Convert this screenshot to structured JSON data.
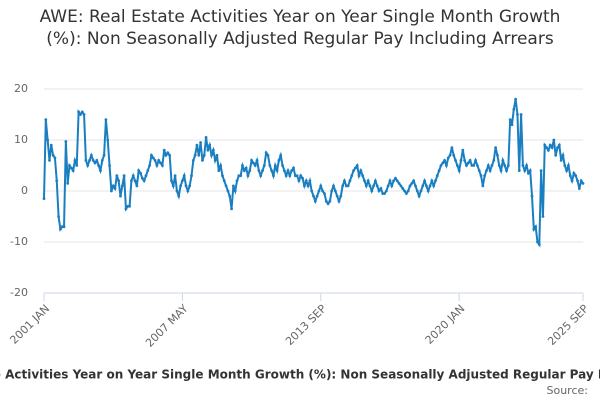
{
  "chart_data": {
    "type": "line",
    "title": "AWE: Real Estate Activities Year on Year Single Month Growth (%): Non Seasonally Adjusted Regular Pay Including Arrears",
    "source": "Source:",
    "categories": [
      "2001 JAN",
      "2001 FEB",
      "2001 MAR",
      "2001 APR",
      "2001 MAY",
      "2001 JUN",
      "2001 JUL",
      "2001 AUG",
      "2001 SEP",
      "2001 OCT",
      "2001 NOV",
      "2001 DEC",
      "2002 JAN",
      "2002 FEB",
      "2002 MAR",
      "2002 APR",
      "2002 MAY",
      "2002 JUN",
      "2002 JUL",
      "2002 AUG",
      "2002 SEP",
      "2002 OCT",
      "2002 NOV",
      "2002 DEC",
      "2003 JAN",
      "2003 FEB",
      "2003 MAR",
      "2003 APR",
      "2003 MAY",
      "2003 JUN",
      "2003 JUL",
      "2003 AUG",
      "2003 SEP",
      "2003 OCT",
      "2003 NOV",
      "2003 DEC",
      "2004 JAN",
      "2004 FEB",
      "2004 MAR",
      "2004 APR",
      "2004 MAY",
      "2004 JUN",
      "2004 JUL",
      "2004 AUG",
      "2004 SEP",
      "2004 OCT",
      "2004 NOV",
      "2004 DEC",
      "2005 JAN",
      "2005 FEB",
      "2005 MAR",
      "2005 APR",
      "2005 MAY",
      "2005 JUN",
      "2005 JUL",
      "2005 AUG",
      "2005 SEP",
      "2005 OCT",
      "2005 NOV",
      "2005 DEC",
      "2006 JAN",
      "2006 FEB",
      "2006 MAR",
      "2006 APR",
      "2006 MAY",
      "2006 JUN",
      "2006 JUL",
      "2006 AUG",
      "2006 SEP",
      "2006 OCT",
      "2006 NOV",
      "2006 DEC",
      "2007 JAN",
      "2007 FEB",
      "2007 MAR",
      "2007 APR",
      "2007 MAY",
      "2007 JUN",
      "2007 JUL",
      "2007 AUG",
      "2007 SEP",
      "2007 OCT",
      "2007 NOV",
      "2007 DEC",
      "2008 JAN",
      "2008 FEB",
      "2008 MAR",
      "2008 APR",
      "2008 MAY",
      "2008 JUN",
      "2008 JUL",
      "2008 AUG",
      "2008 SEP",
      "2008 OCT",
      "2008 NOV",
      "2008 DEC",
      "2009 JAN",
      "2009 FEB",
      "2009 MAR",
      "2009 APR",
      "2009 MAY",
      "2009 JUN",
      "2009 JUL",
      "2009 AUG",
      "2009 SEP",
      "2009 OCT",
      "2009 NOV",
      "2009 DEC",
      "2010 JAN",
      "2010 FEB",
      "2010 MAR",
      "2010 APR",
      "2010 MAY",
      "2010 JUN",
      "2010 JUL",
      "2010 AUG",
      "2010 SEP",
      "2010 OCT",
      "2010 NOV",
      "2010 DEC",
      "2011 JAN",
      "2011 FEB",
      "2011 MAR",
      "2011 APR",
      "2011 MAY",
      "2011 JUN",
      "2011 JUL",
      "2011 AUG",
      "2011 SEP",
      "2011 OCT",
      "2011 NOV",
      "2011 DEC",
      "2012 JAN",
      "2012 FEB",
      "2012 MAR",
      "2012 APR",
      "2012 MAY",
      "2012 JUN",
      "2012 JUL",
      "2012 AUG",
      "2012 SEP",
      "2012 OCT",
      "2012 NOV",
      "2012 DEC",
      "2013 JAN",
      "2013 FEB",
      "2013 MAR",
      "2013 APR",
      "2013 MAY",
      "2013 JUN",
      "2013 JUL",
      "2013 AUG",
      "2013 SEP",
      "2013 OCT",
      "2013 NOV",
      "2013 DEC",
      "2014 JAN",
      "2014 FEB",
      "2014 MAR",
      "2014 APR",
      "2014 MAY",
      "2014 JUN",
      "2014 JUL",
      "2014 AUG",
      "2014 SEP",
      "2014 OCT",
      "2014 NOV",
      "2014 DEC",
      "2015 JAN",
      "2015 FEB",
      "2015 MAR",
      "2015 APR",
      "2015 MAY",
      "2015 JUN",
      "2015 JUL",
      "2015 AUG",
      "2015 SEP",
      "2015 OCT",
      "2015 NOV",
      "2015 DEC",
      "2016 JAN",
      "2016 FEB",
      "2016 MAR",
      "2016 APR",
      "2016 MAY",
      "2016 JUN",
      "2016 JUL",
      "2016 AUG",
      "2016 SEP",
      "2016 OCT",
      "2016 NOV",
      "2016 DEC",
      "2017 JAN",
      "2017 FEB",
      "2017 MAR",
      "2017 APR",
      "2017 MAY",
      "2017 JUN",
      "2017 JUL",
      "2017 AUG",
      "2017 SEP",
      "2017 OCT",
      "2017 NOV",
      "2017 DEC",
      "2018 JAN",
      "2018 FEB",
      "2018 MAR",
      "2018 APR",
      "2018 MAY",
      "2018 JUN",
      "2018 JUL",
      "2018 AUG",
      "2018 SEP",
      "2018 OCT",
      "2018 NOV",
      "2018 DEC",
      "2019 JAN",
      "2019 FEB",
      "2019 MAR",
      "2019 APR",
      "2019 MAY",
      "2019 JUN",
      "2019 JUL",
      "2019 AUG",
      "2019 SEP",
      "2019 OCT",
      "2019 NOV",
      "2019 DEC",
      "2020 JAN",
      "2020 FEB",
      "2020 MAR",
      "2020 APR",
      "2020 MAY",
      "2020 JUN",
      "2020 JUL",
      "2020 AUG",
      "2020 SEP",
      "2020 OCT",
      "2020 NOV",
      "2020 DEC",
      "2021 JAN",
      "2021 FEB",
      "2021 MAR",
      "2021 APR",
      "2021 MAY",
      "2021 JUN",
      "2021 JUL",
      "2021 AUG",
      "2021 SEP",
      "2021 OCT",
      "2021 NOV",
      "2021 DEC",
      "2022 JAN",
      "2022 FEB",
      "2022 MAR",
      "2022 APR",
      "2022 MAY",
      "2022 JUN",
      "2022 JUL",
      "2022 AUG",
      "2022 SEP",
      "2022 OCT",
      "2022 NOV",
      "2022 DEC",
      "2023 JAN",
      "2023 FEB",
      "2023 MAR",
      "2023 APR",
      "2023 MAY",
      "2023 JUN",
      "2023 JUL",
      "2023 AUG",
      "2023 SEP",
      "2023 OCT",
      "2023 NOV",
      "2023 DEC",
      "2024 JAN",
      "2024 FEB",
      "2024 MAR",
      "2024 APR",
      "2024 MAY",
      "2024 JUN",
      "2024 JUL",
      "2024 AUG",
      "2024 SEP",
      "2024 OCT",
      "2024 NOV",
      "2024 DEC",
      "2025 JAN",
      "2025 FEB",
      "2025 MAR",
      "2025 APR",
      "2025 MAY",
      "2025 JUN",
      "2025 JUL",
      "2025 AUG",
      "2025 SEP"
    ],
    "series": [
      {
        "name": "AWE: Real Estate Activities Year on Year Single Month Growth (%): Non Seasonally Adjusted Regular Pay Including Arrears",
        "color": "#1a7fc1",
        "values": [
          -1.5,
          14,
          10,
          6,
          9,
          7,
          6.5,
          2,
          -5,
          -7.5,
          -7,
          -7,
          9.7,
          1.5,
          5,
          4.5,
          4,
          6,
          5,
          15.5,
          15,
          15.5,
          15,
          6,
          5,
          6,
          7,
          6,
          5.5,
          6,
          5,
          4,
          6,
          7,
          14,
          10,
          5,
          0,
          1,
          0.5,
          3,
          2,
          -1,
          1,
          3,
          -3.5,
          -3,
          -3,
          2,
          3,
          2,
          1,
          4,
          3.5,
          2.5,
          2,
          3,
          4,
          5,
          7,
          6.5,
          6,
          5,
          6,
          5.5,
          5,
          8,
          7,
          7.5,
          7,
          2,
          1,
          3,
          0,
          -1,
          1,
          2,
          3,
          1,
          0,
          1,
          3,
          6,
          7,
          9,
          7,
          9.5,
          6,
          7,
          10.5,
          8,
          9,
          7,
          8,
          6,
          7,
          4,
          5,
          3,
          2,
          1,
          0,
          -1,
          -3.5,
          1,
          0,
          2,
          3,
          3,
          5,
          4,
          4.5,
          3,
          4,
          6,
          5.5,
          5,
          6,
          4,
          3,
          4,
          5,
          7.5,
          7,
          5,
          4,
          3,
          5,
          4,
          6,
          7,
          5,
          4,
          3,
          4,
          3,
          4,
          4.5,
          3,
          3,
          2,
          3,
          2.5,
          1,
          2,
          1,
          2,
          0,
          -1,
          -2,
          -1,
          0,
          1,
          0,
          -0.5,
          -2,
          -2.5,
          -2,
          0,
          1,
          0,
          -1,
          -2,
          -1,
          1,
          2,
          1,
          1,
          2,
          3,
          4,
          4.5,
          5,
          3,
          4,
          3,
          2,
          1,
          2,
          1,
          0,
          1,
          2,
          1,
          0,
          0.5,
          -0.5,
          -0.5,
          0,
          1,
          2,
          1,
          2,
          2.5,
          2,
          1.5,
          1,
          0.5,
          0,
          -0.5,
          0,
          1,
          1.5,
          2,
          1,
          0,
          -1,
          0,
          1,
          2,
          1,
          0,
          1,
          2,
          1,
          2,
          3,
          4,
          5,
          5.5,
          6,
          5,
          6.5,
          7,
          8.5,
          7,
          6,
          5,
          4,
          6,
          8,
          6,
          5,
          5.5,
          6,
          5,
          5,
          6,
          5,
          4,
          3,
          1,
          3,
          4,
          5,
          4,
          5,
          6,
          8.5,
          7,
          5,
          4,
          6,
          5,
          4,
          5,
          14,
          13,
          16,
          18,
          15,
          4,
          15,
          5,
          4,
          5,
          3.5,
          4,
          -1,
          -7.5,
          -7,
          -10,
          -10.5,
          4,
          -5,
          9,
          8.5,
          8,
          9,
          8.5,
          10,
          7,
          8.5,
          9,
          6,
          7,
          5,
          4,
          5,
          3,
          2,
          3.5,
          3,
          2,
          0.5,
          2,
          1.5
        ]
      }
    ],
    "xticks": [
      "2001 JAN",
      "2007 MAY",
      "2013 SEP",
      "2020 JAN",
      "2025 SEP"
    ],
    "ylim": [
      -20,
      20
    ],
    "yticks": [
      -20,
      -10,
      0,
      10,
      20
    ],
    "grid": true
  }
}
